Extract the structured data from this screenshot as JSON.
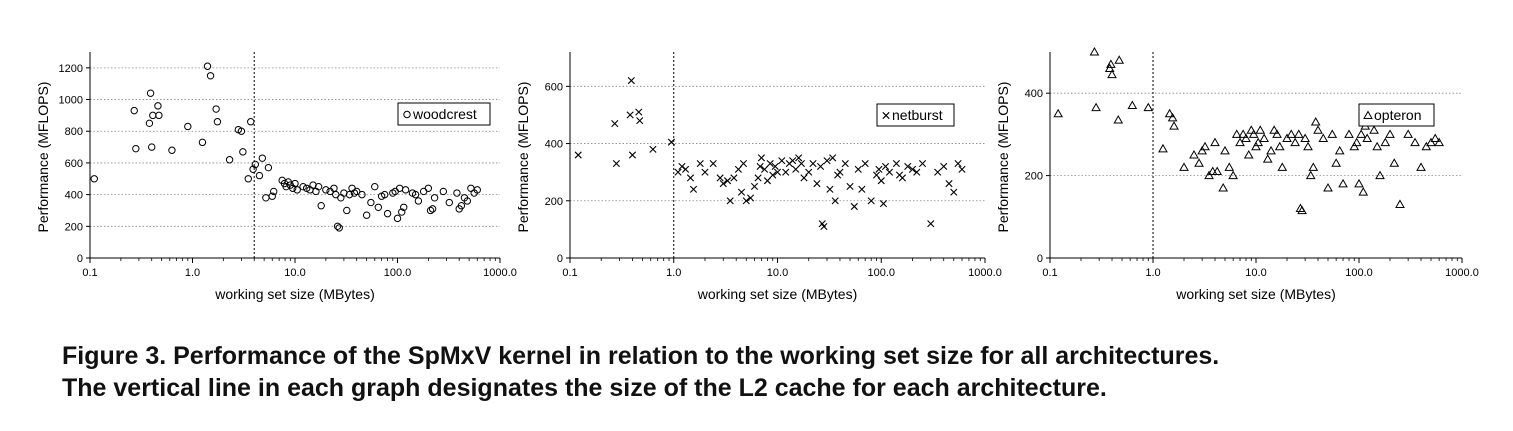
{
  "caption": {
    "line1": "Figure 3. Performance of the SpMxV kernel in relation to the working set size for all architectures.",
    "line2": "The vertical line in each graph designates the size of the L2 cache for each architecture."
  },
  "chart_data": [
    {
      "type": "scatter",
      "title": "",
      "xlabel": "working set size (MBytes)",
      "ylabel": "Performance (MFLOPS)",
      "x_scale": "log",
      "xlim": [
        0.1,
        1000
      ],
      "ylim": [
        0,
        1300
      ],
      "x_ticks": [
        0.1,
        1,
        10,
        100,
        1000
      ],
      "x_tick_labels": [
        "0.1",
        "1.0",
        "10.0",
        "100.0",
        "1000.0"
      ],
      "y_ticks": [
        0,
        200,
        400,
        600,
        800,
        1000,
        1200
      ],
      "y_tick_labels": [
        "0",
        "200",
        "400",
        "600",
        "800",
        "1000",
        "1200"
      ],
      "y_grid": true,
      "legend_position": "top-right",
      "vline_x": 4,
      "series": [
        {
          "name": "woodcrest",
          "marker": "circle",
          "x": [
            0.11,
            0.27,
            0.28,
            0.38,
            0.39,
            0.4,
            0.41,
            0.46,
            0.47,
            0.63,
            0.9,
            1.25,
            1.4,
            1.5,
            1.7,
            1.75,
            2.3,
            2.8,
            3.0,
            3.1,
            3.5,
            3.7,
            3.9,
            4.1,
            4.5,
            4.8,
            5.2,
            5.5,
            6.0,
            6.2,
            7.5,
            7.9,
            8.2,
            8.6,
            9.0,
            9.5,
            10.0,
            10.5,
            12.0,
            13.0,
            14.0,
            15.0,
            16.0,
            17.0,
            18.0,
            20.0,
            22.0,
            24.0,
            25.0,
            26.0,
            27.0,
            28.0,
            30.0,
            32.0,
            34.0,
            36.0,
            38.0,
            40.0,
            45.0,
            50.0,
            55.0,
            60.0,
            65.0,
            70.0,
            75.0,
            80.0,
            90.0,
            95.0,
            100.0,
            105.0,
            110.0,
            115.0,
            120.0,
            140.0,
            150.0,
            160.0,
            180.0,
            200.0,
            210.0,
            220.0,
            230.0,
            280.0,
            320.0,
            380.0,
            400.0,
            420.0,
            450.0,
            480.0,
            520.0,
            560.0,
            600.0
          ],
          "y": [
            500,
            930,
            690,
            850,
            1040,
            700,
            900,
            960,
            900,
            680,
            830,
            730,
            1210,
            1150,
            940,
            860,
            620,
            810,
            800,
            670,
            500,
            860,
            560,
            590,
            520,
            630,
            380,
            570,
            390,
            420,
            490,
            470,
            450,
            480,
            460,
            440,
            470,
            430,
            450,
            440,
            430,
            460,
            420,
            450,
            330,
            430,
            420,
            440,
            400,
            200,
            190,
            380,
            410,
            300,
            400,
            440,
            410,
            420,
            400,
            270,
            350,
            450,
            320,
            390,
            400,
            280,
            410,
            420,
            250,
            440,
            290,
            320,
            430,
            410,
            400,
            360,
            420,
            440,
            300,
            310,
            380,
            420,
            350,
            410,
            310,
            330,
            380,
            360,
            440,
            410,
            430
          ]
        }
      ]
    },
    {
      "type": "scatter",
      "title": "",
      "xlabel": "working set size (MBytes)",
      "ylabel": "Performance (MFLOPS)",
      "x_scale": "log",
      "xlim": [
        0.1,
        1000
      ],
      "ylim": [
        0,
        720
      ],
      "x_ticks": [
        0.1,
        1,
        10,
        100,
        1000
      ],
      "x_tick_labels": [
        "0.1",
        "1.0",
        "10.0",
        "100.0",
        "1000.0"
      ],
      "y_ticks": [
        0,
        200,
        400,
        600
      ],
      "y_tick_labels": [
        "0",
        "200",
        "400",
        "600"
      ],
      "y_grid": true,
      "legend_position": "top-right",
      "vline_x": 1,
      "series": [
        {
          "name": "netburst",
          "marker": "x",
          "x": [
            0.12,
            0.27,
            0.28,
            0.38,
            0.39,
            0.4,
            0.46,
            0.47,
            0.63,
            0.95,
            1.1,
            1.2,
            1.3,
            1.45,
            1.55,
            1.8,
            2.0,
            2.4,
            2.8,
            3.0,
            3.3,
            3.5,
            3.8,
            4.2,
            4.5,
            4.7,
            5.0,
            5.5,
            6.0,
            6.5,
            6.8,
            7.0,
            7.5,
            8.0,
            8.5,
            9.0,
            9.5,
            10.0,
            11.0,
            12.0,
            13.0,
            14.0,
            15.0,
            16.0,
            17.0,
            18.0,
            20.0,
            22.0,
            24.0,
            26.0,
            27.0,
            28.0,
            30.0,
            32.0,
            34.0,
            36.0,
            38.0,
            40.0,
            45.0,
            50.0,
            55.0,
            60.0,
            65.0,
            70.0,
            80.0,
            90.0,
            95.0,
            100.0,
            105.0,
            110.0,
            120.0,
            140.0,
            150.0,
            160.0,
            180.0,
            200.0,
            220.0,
            250.0,
            300.0,
            350.0,
            400.0,
            450.0,
            500.0,
            550.0,
            600.0
          ],
          "y": [
            360,
            470,
            330,
            500,
            620,
            360,
            510,
            480,
            380,
            405,
            300,
            320,
            310,
            280,
            240,
            330,
            300,
            330,
            280,
            260,
            270,
            200,
            280,
            310,
            230,
            330,
            200,
            210,
            250,
            280,
            320,
            350,
            310,
            270,
            330,
            290,
            320,
            300,
            340,
            300,
            330,
            340,
            310,
            350,
            330,
            280,
            300,
            330,
            260,
            320,
            120,
            110,
            340,
            240,
            350,
            200,
            290,
            300,
            330,
            250,
            180,
            310,
            240,
            330,
            200,
            290,
            310,
            270,
            190,
            320,
            300,
            330,
            290,
            280,
            320,
            310,
            300,
            330,
            120,
            300,
            320,
            260,
            230,
            330,
            310
          ]
        }
      ]
    },
    {
      "type": "scatter",
      "title": "",
      "xlabel": "working set size (MBytes)",
      "ylabel": "Performance (MFLOPS)",
      "x_scale": "log",
      "xlim": [
        0.1,
        1000
      ],
      "ylim": [
        0,
        500
      ],
      "x_ticks": [
        0.1,
        1,
        10,
        100,
        1000
      ],
      "x_tick_labels": [
        "0.1",
        "1.0",
        "10.0",
        "100.0",
        "1000.0"
      ],
      "y_ticks": [
        0,
        200,
        400
      ],
      "y_tick_labels": [
        "0",
        "200",
        "400"
      ],
      "y_grid": true,
      "legend_position": "top-right",
      "vline_x": 1,
      "series": [
        {
          "name": "opteron",
          "marker": "triangle",
          "x": [
            0.12,
            0.27,
            0.28,
            0.38,
            0.39,
            0.4,
            0.46,
            0.47,
            0.63,
            0.9,
            1.25,
            1.45,
            1.55,
            1.6,
            2.0,
            2.5,
            2.8,
            3.0,
            3.2,
            3.5,
            3.8,
            4.0,
            4.2,
            4.8,
            5.0,
            5.5,
            6.0,
            6.5,
            7.0,
            7.5,
            8.0,
            8.5,
            9.0,
            9.5,
            10.0,
            10.5,
            11.0,
            12.0,
            13.0,
            14.0,
            15.0,
            16.0,
            17.0,
            18.0,
            20.0,
            22.0,
            24.0,
            26.0,
            27.0,
            28.0,
            30.0,
            32.0,
            34.0,
            36.0,
            38.0,
            40.0,
            45.0,
            50.0,
            55.0,
            60.0,
            65.0,
            70.0,
            80.0,
            90.0,
            95.0,
            100.0,
            105.0,
            110.0,
            115.0,
            120.0,
            140.0,
            150.0,
            160.0,
            180.0,
            200.0,
            220.0,
            250.0,
            300.0,
            350.0,
            400.0,
            450.0,
            500.0,
            550.0,
            600.0
          ],
          "y": [
            350,
            500,
            365,
            460,
            470,
            445,
            335,
            480,
            370,
            365,
            265,
            350,
            340,
            320,
            220,
            250,
            230,
            260,
            270,
            200,
            210,
            280,
            210,
            170,
            260,
            220,
            200,
            300,
            280,
            300,
            290,
            250,
            310,
            300,
            270,
            280,
            310,
            290,
            240,
            260,
            310,
            300,
            270,
            220,
            290,
            300,
            280,
            300,
            120,
            115,
            290,
            270,
            200,
            220,
            330,
            310,
            290,
            170,
            300,
            230,
            260,
            180,
            300,
            270,
            280,
            180,
            300,
            160,
            320,
            290,
            310,
            270,
            200,
            280,
            300,
            230,
            130,
            300,
            280,
            220,
            270,
            280,
            290,
            280
          ]
        }
      ]
    }
  ]
}
